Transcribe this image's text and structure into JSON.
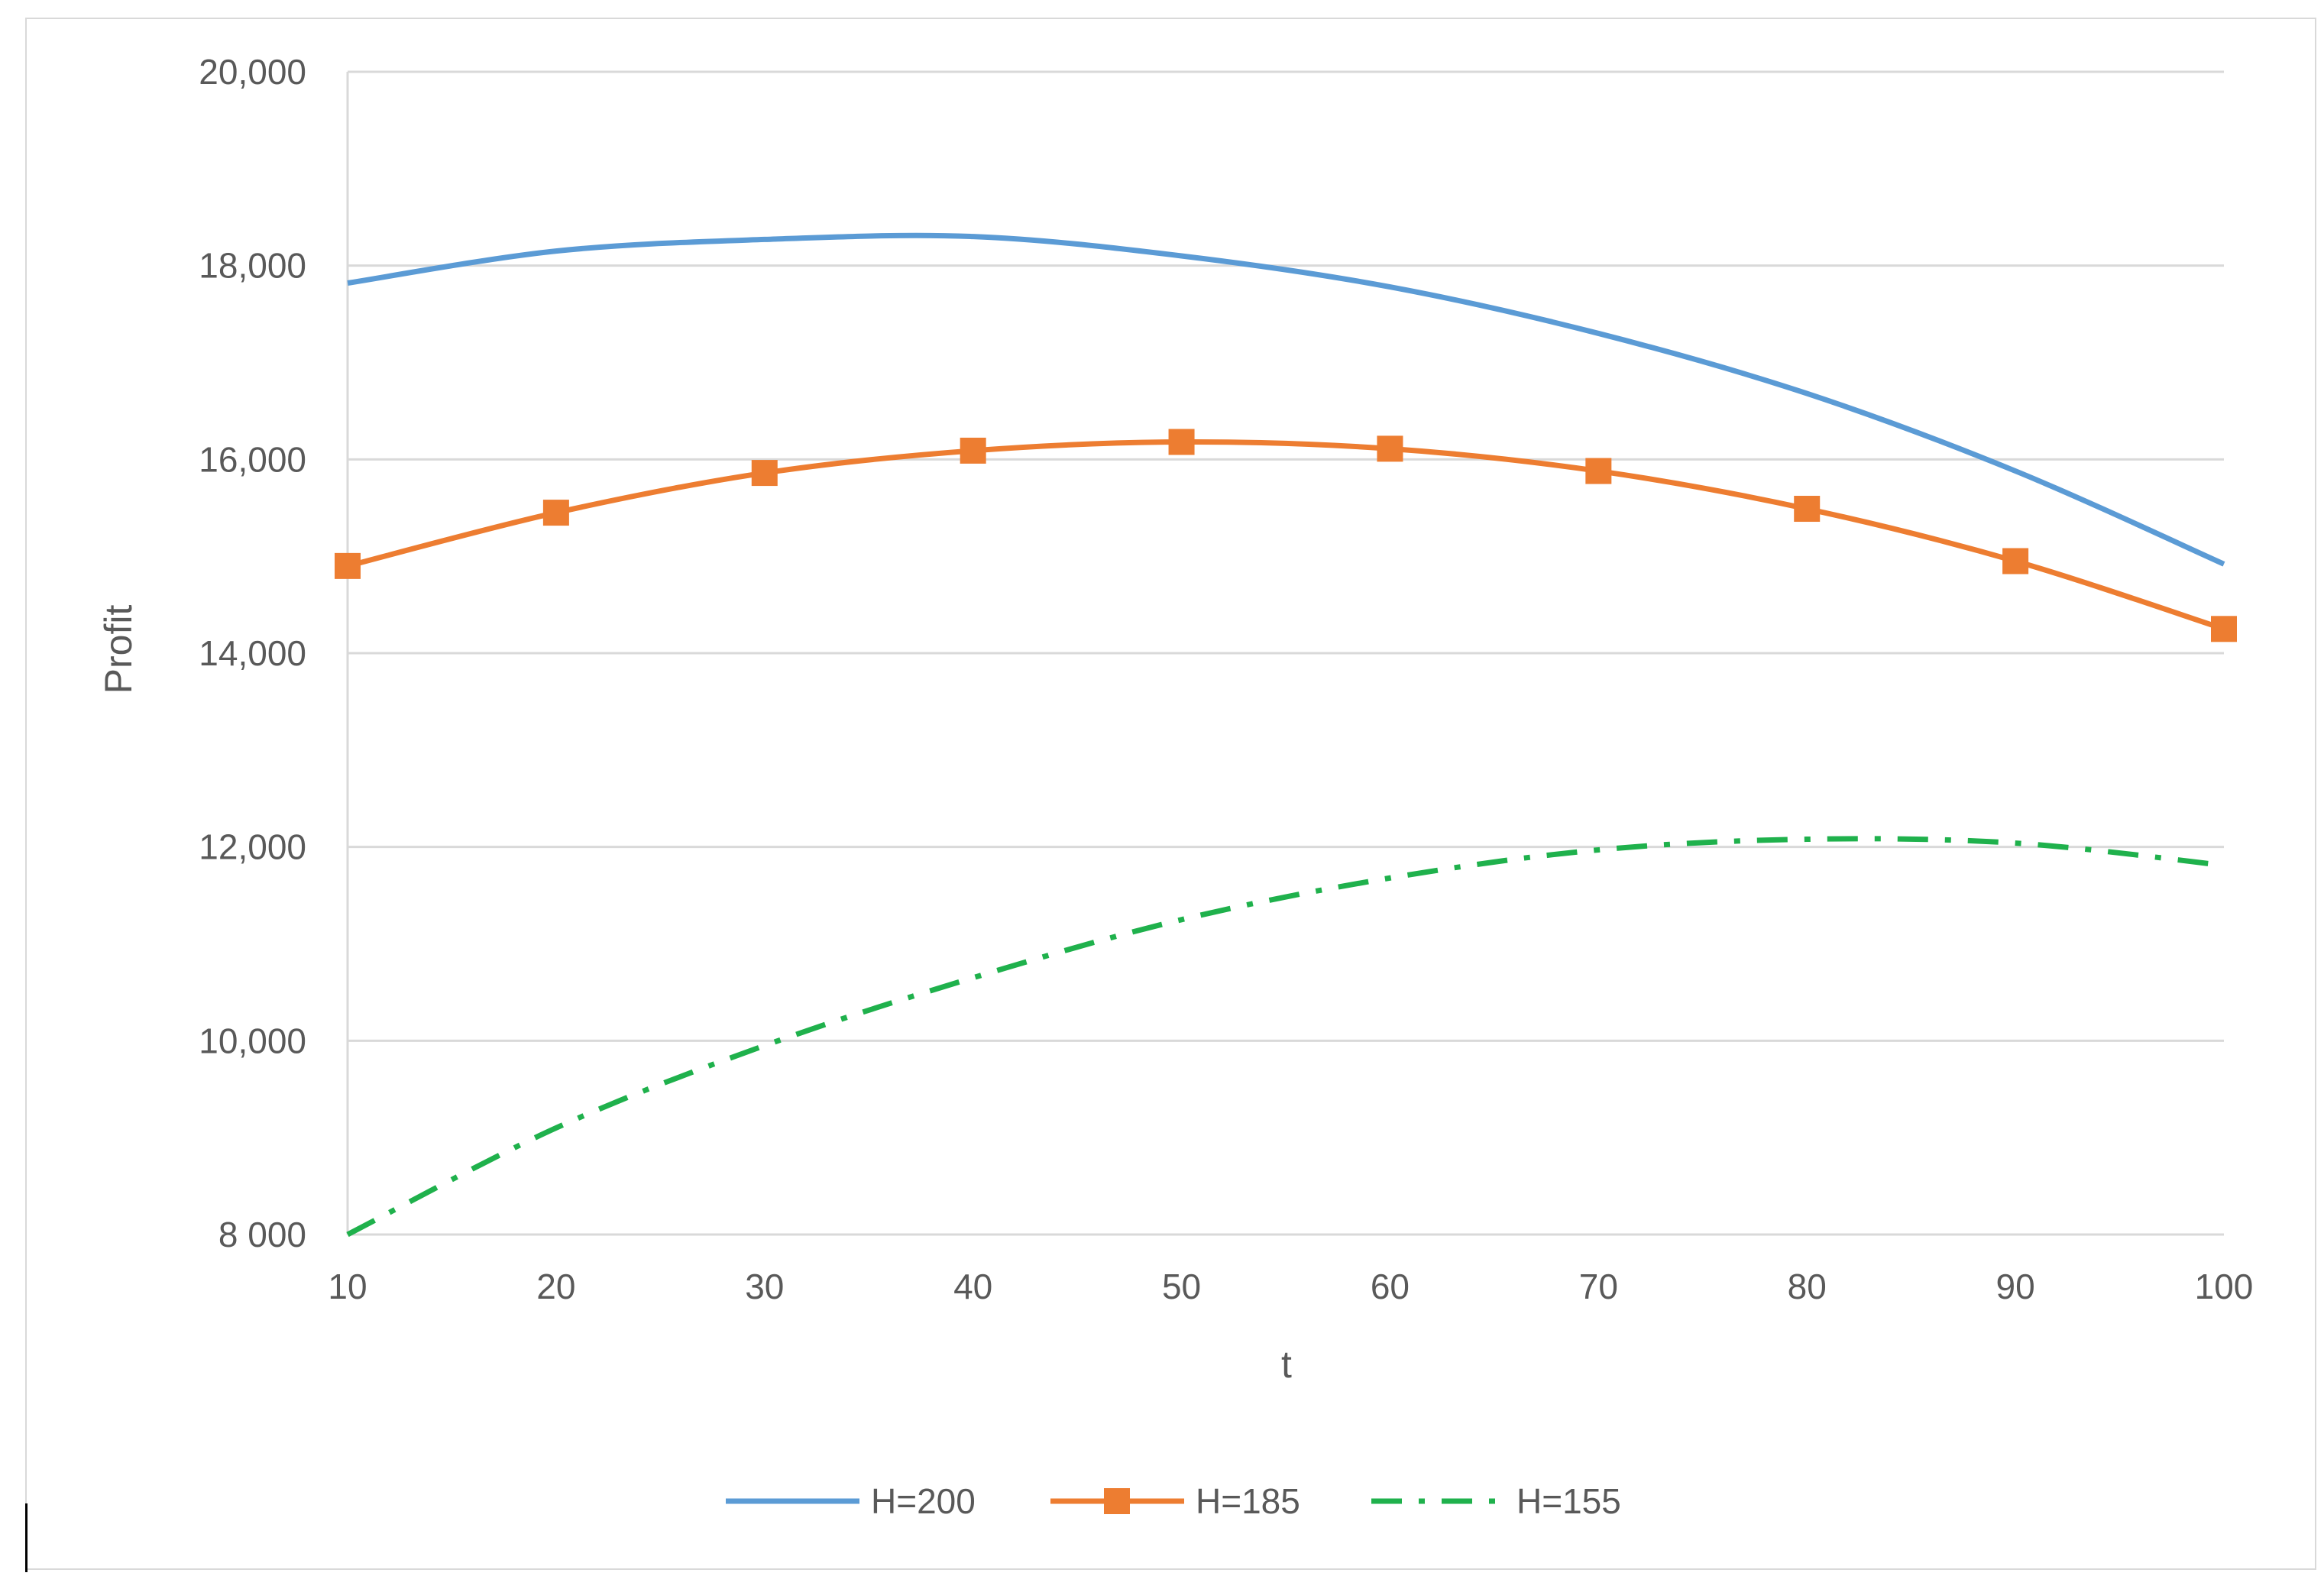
{
  "chart_data": {
    "type": "line",
    "title": "",
    "xlabel": "t",
    "ylabel": "Profit",
    "xlim": [
      10,
      100
    ],
    "ylim": [
      8000,
      20000
    ],
    "x_ticks": [
      10,
      20,
      30,
      40,
      50,
      60,
      70,
      80,
      90,
      100
    ],
    "x_tick_labels": [
      "10",
      "20",
      "30",
      "40",
      "50",
      "60",
      "70",
      "80",
      "90",
      "100"
    ],
    "y_ticks": [
      8000,
      10000,
      12000,
      14000,
      16000,
      18000,
      20000
    ],
    "y_tick_labels": [
      "8 000",
      "10,000",
      "12,000",
      "14,000",
      "16,000",
      "18,000",
      "20,000"
    ],
    "grid": {
      "horizontal": true,
      "vertical": false
    },
    "legend": {
      "placement": "bottom"
    },
    "x": [
      10,
      20,
      30,
      40,
      50,
      60,
      70,
      80,
      90,
      100
    ],
    "series": [
      {
        "name": "H=200",
        "color": "#5b9bd5",
        "style": "solid",
        "marker": "none",
        "values": [
          17820,
          18150,
          18270,
          18300,
          18100,
          17780,
          17300,
          16680,
          15880,
          14920
        ]
      },
      {
        "name": "H=185",
        "color": "#ed7d31",
        "style": "solid",
        "marker": "square",
        "values": [
          14900,
          15450,
          15860,
          16090,
          16180,
          16110,
          15880,
          15490,
          14950,
          14250
        ]
      },
      {
        "name": "H=155",
        "color": "#1fb14c",
        "style": "dash-dot",
        "marker": "none",
        "values": [
          8000,
          9100,
          9950,
          10650,
          11250,
          11680,
          11970,
          12080,
          12040,
          11810
        ]
      }
    ]
  }
}
